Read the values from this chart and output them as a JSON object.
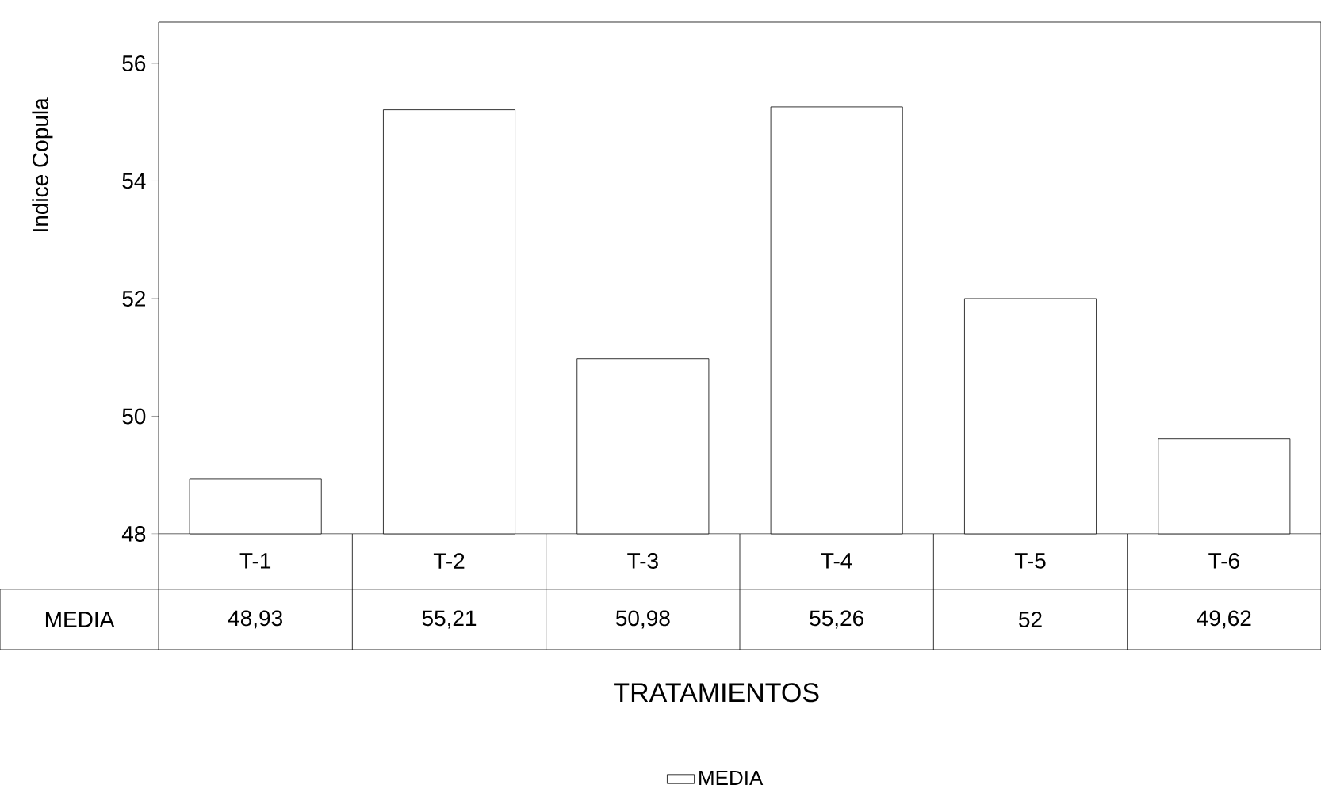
{
  "chart_data": {
    "type": "bar",
    "categories": [
      "T-1",
      "T-2",
      "T-3",
      "T-4",
      "T-5",
      "T-6"
    ],
    "series": [
      {
        "name": "MEDIA",
        "color": "#ffffff",
        "values": [
          48.93,
          55.21,
          50.98,
          55.26,
          52,
          49.62
        ],
        "value_labels": [
          "48,93",
          "55,21",
          "50,98",
          "55,26",
          "52",
          "49,62"
        ]
      }
    ],
    "xlabel": "TRATAMIENTOS",
    "ylabel": "Indice Copula",
    "ylim": [
      48,
      56.7
    ],
    "yticks": [
      48,
      50,
      52,
      54,
      56
    ],
    "legend": "bottom"
  }
}
